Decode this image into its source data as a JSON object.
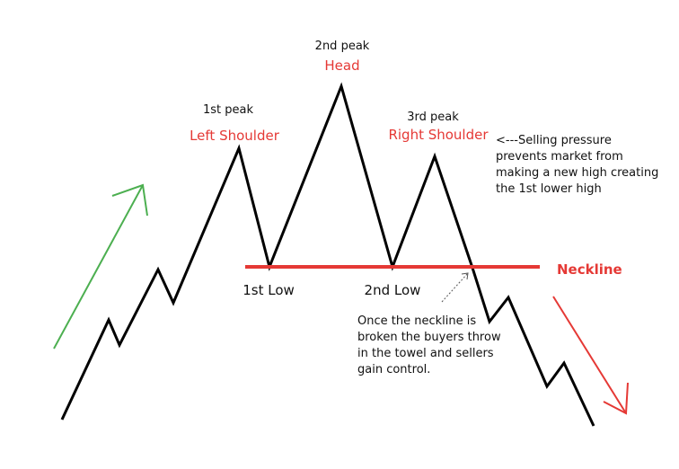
{
  "labels": {
    "peak1_number": "1st peak",
    "peak1_name": "Left Shoulder",
    "peak2_number": "2nd peak",
    "peak2_name": "Head",
    "peak3_number": "3rd peak",
    "peak3_name": "Right Shoulder",
    "low1": "1st Low",
    "low2": "2nd Low",
    "neckline": "Neckline",
    "selling_note": [
      "<---Selling pressure",
      "prevents market from",
      "making a new high creating",
      "the 1st lower high"
    ],
    "break_note": [
      "Once the neckline is",
      "broken the buyers throw",
      "in the towel and sellers",
      "gain control."
    ]
  },
  "colors": {
    "price_line": "#000000",
    "neckline": "#e53935",
    "label_red": "#e53935",
    "uptrend_arrow": "#4caf50",
    "downtrend_arrow": "#e53935",
    "text": "#111111"
  },
  "icons": {
    "uptrend": "arrow-up-right",
    "downtrend": "arrow-down-right",
    "pointer": "dotted-arrow"
  }
}
